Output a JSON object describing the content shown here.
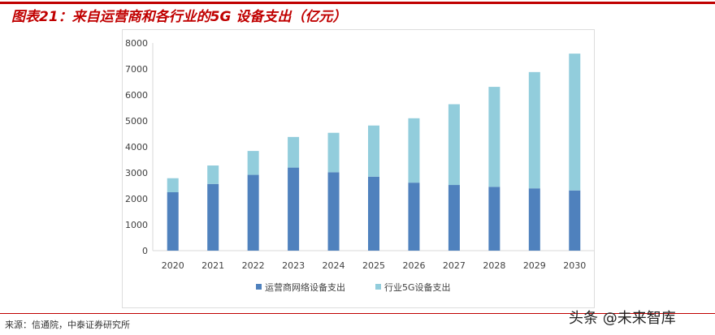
{
  "header": {
    "title": "图表21：来自运营商和各行业的5G 设备支出（亿元）"
  },
  "footer": {
    "source": "来源：信通院，中泰证券研究所",
    "watermark": "头条 @未来智库"
  },
  "chart_data": {
    "type": "bar",
    "stacked": true,
    "categories": [
      "2020",
      "2021",
      "2022",
      "2023",
      "2024",
      "2025",
      "2026",
      "2027",
      "2028",
      "2029",
      "2030"
    ],
    "series": [
      {
        "name": "运营商网络设备支出",
        "color": "#4f81bd",
        "values": [
          2250,
          2570,
          2920,
          3200,
          3020,
          2850,
          2620,
          2530,
          2460,
          2400,
          2320
        ]
      },
      {
        "name": "行业5G设备支出",
        "color": "#92cddc",
        "values": [
          540,
          710,
          920,
          1180,
          1520,
          1970,
          2480,
          3110,
          3850,
          4480,
          5270
        ]
      }
    ],
    "ylim": [
      0,
      8000
    ],
    "yticks": [
      "0",
      "1000",
      "2000",
      "3000",
      "4000",
      "5000",
      "6000",
      "7000",
      "8000"
    ],
    "grid": false,
    "legend": "bottom"
  }
}
